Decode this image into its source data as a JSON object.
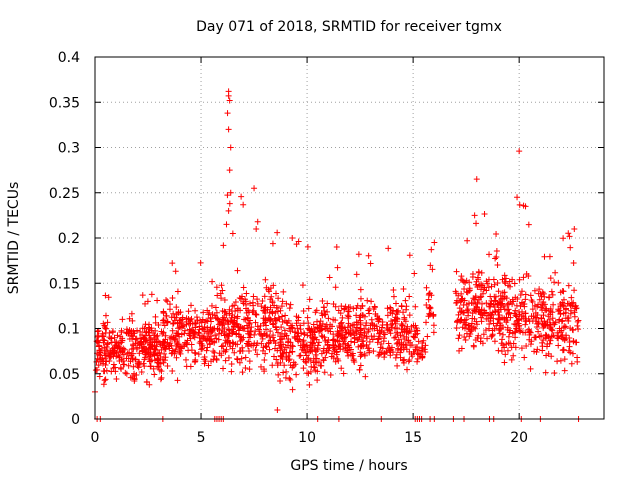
{
  "chart_data": {
    "type": "scatter",
    "title": "Day 071 of 2018, SRMTID for receiver tgmx",
    "xlabel": "GPS time / hours",
    "ylabel": "SRMTID / TECUs",
    "xlim": [
      0,
      24
    ],
    "ylim": [
      0,
      0.4
    ],
    "xticks": [
      0,
      5,
      10,
      15,
      20
    ],
    "xtick_labels": [
      "0",
      "5",
      "10",
      "15",
      "20"
    ],
    "yticks": [
      0,
      0.05,
      0.1,
      0.15,
      0.2,
      0.25,
      0.3,
      0.35,
      0.4
    ],
    "ytick_labels": [
      "0",
      "0.05",
      "0.1",
      "0.15",
      "0.2",
      "0.25",
      "0.3",
      "0.35",
      "0.4"
    ],
    "grid": true,
    "marker": "+",
    "color": "#ff0000",
    "series": [
      {
        "name": "SRMTID",
        "segments": [
          {
            "x_start": 0.0,
            "x_end": 3.2,
            "mean": 0.075,
            "spread": 0.022,
            "min": 0.02,
            "max": 0.14,
            "count": 330
          },
          {
            "x_start": 3.2,
            "x_end": 5.6,
            "mean": 0.095,
            "spread": 0.025,
            "min": 0.035,
            "max": 0.175,
            "count": 230
          },
          {
            "x_start": 5.6,
            "x_end": 8.6,
            "mean": 0.1,
            "spread": 0.03,
            "min": 0.03,
            "max": 0.26,
            "count": 300
          },
          {
            "x_start": 8.6,
            "x_end": 10.5,
            "mean": 0.085,
            "spread": 0.03,
            "min": 0.01,
            "max": 0.2,
            "count": 200
          },
          {
            "x_start": 10.5,
            "x_end": 15.2,
            "mean": 0.09,
            "spread": 0.025,
            "min": 0.02,
            "max": 0.19,
            "count": 430
          },
          {
            "x_start": 15.2,
            "x_end": 15.6,
            "mean": 0.075,
            "spread": 0.01,
            "min": 0.06,
            "max": 0.09,
            "count": 18
          },
          {
            "x_start": 15.6,
            "x_end": 16.0,
            "mean": 0.12,
            "spread": 0.025,
            "min": 0.07,
            "max": 0.19,
            "count": 25
          },
          {
            "x_start": 17.0,
            "x_end": 19.0,
            "mean": 0.12,
            "spread": 0.03,
            "min": 0.04,
            "max": 0.23,
            "count": 200
          },
          {
            "x_start": 19.0,
            "x_end": 20.5,
            "mean": 0.115,
            "spread": 0.03,
            "min": 0.04,
            "max": 0.245,
            "count": 150
          },
          {
            "x_start": 20.5,
            "x_end": 22.8,
            "mean": 0.105,
            "spread": 0.03,
            "min": 0.035,
            "max": 0.21,
            "count": 210
          }
        ],
        "highlights": [
          {
            "x": 6.3,
            "y": 0.362
          },
          {
            "x": 6.3,
            "y": 0.357
          },
          {
            "x": 6.35,
            "y": 0.352
          },
          {
            "x": 6.25,
            "y": 0.338
          },
          {
            "x": 6.3,
            "y": 0.32
          },
          {
            "x": 6.4,
            "y": 0.3
          },
          {
            "x": 6.35,
            "y": 0.275
          },
          {
            "x": 6.4,
            "y": 0.25
          },
          {
            "x": 6.3,
            "y": 0.23
          },
          {
            "x": 6.2,
            "y": 0.215
          },
          {
            "x": 6.5,
            "y": 0.205
          },
          {
            "x": 7.5,
            "y": 0.255
          },
          {
            "x": 7.6,
            "y": 0.21
          },
          {
            "x": 9.3,
            "y": 0.2
          },
          {
            "x": 8.6,
            "y": 0.01
          },
          {
            "x": 11.4,
            "y": 0.19
          },
          {
            "x": 18.0,
            "y": 0.265
          },
          {
            "x": 20.0,
            "y": 0.296
          },
          {
            "x": 19.9,
            "y": 0.245
          },
          {
            "x": 20.3,
            "y": 0.235
          },
          {
            "x": 17.9,
            "y": 0.225
          },
          {
            "x": 22.6,
            "y": 0.21
          },
          {
            "x": 16.0,
            "y": 0.195
          },
          {
            "x": 0.0,
            "y": 0.03
          }
        ],
        "zero_x": [
          0.1,
          0.25,
          3.2,
          5.65,
          5.75,
          5.85,
          5.95,
          6.05,
          10.5,
          11.5,
          13.5,
          15.1,
          15.2,
          15.3,
          15.4,
          15.8,
          16.0,
          16.9,
          17.4,
          18.6,
          18.8,
          20.1,
          21.0,
          22.8
        ]
      }
    ]
  }
}
